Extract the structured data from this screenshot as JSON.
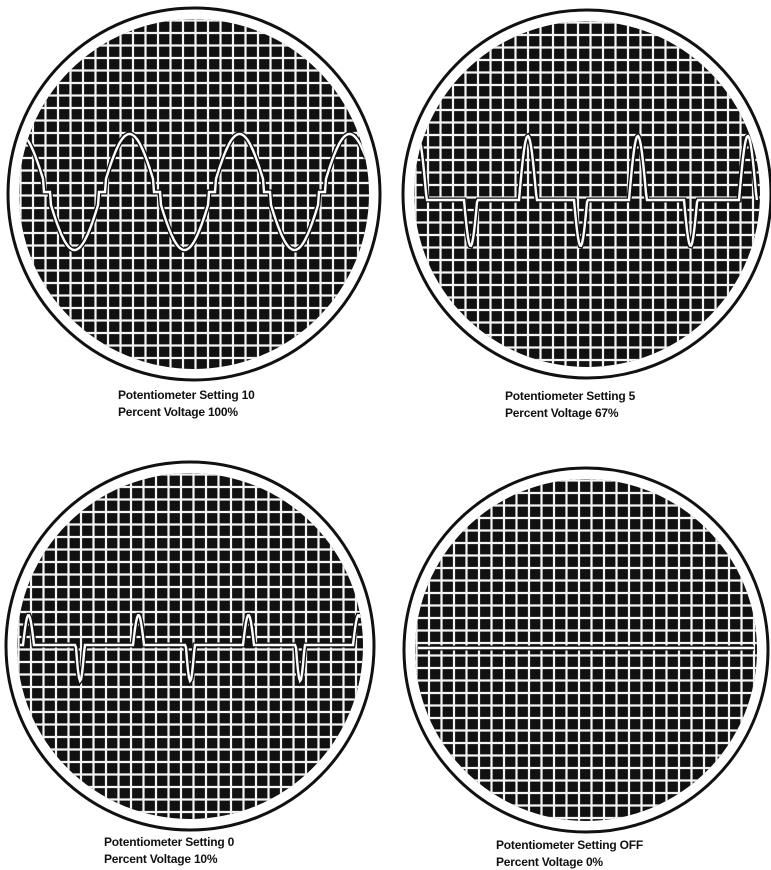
{
  "panels": [
    {
      "caption": [
        "Potentiometer Setting 10",
        "Percent Voltage 100%"
      ]
    },
    {
      "caption": [
        "Potentiometer Setting 5",
        "Percent Voltage 67%"
      ]
    },
    {
      "caption": [
        "Potentiometer Setting 0",
        "Percent Voltage 10%"
      ]
    },
    {
      "caption": [
        "Potentiometer Setting OFF",
        "Percent Voltage 0%"
      ]
    }
  ]
}
